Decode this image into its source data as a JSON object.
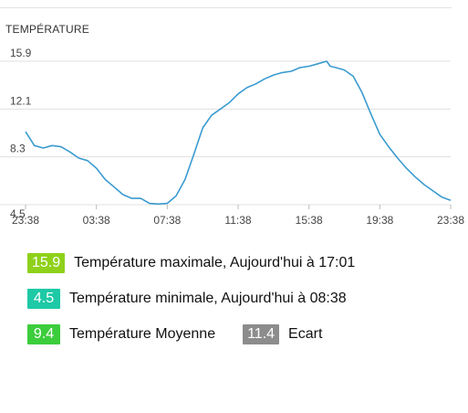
{
  "chart_data": {
    "type": "line",
    "title": "TEMPÉRATURE",
    "xlabel": "",
    "ylabel": "",
    "y_ticks": [
      "15.9",
      "12.1",
      "8.3",
      "4.5"
    ],
    "x_ticks": [
      "23:38",
      "03:38",
      "07:38",
      "11:38",
      "15:38",
      "19:38",
      "23:38"
    ],
    "ylim": [
      4.5,
      15.9
    ],
    "grid": true,
    "series": [
      {
        "color": "#3a9bd0",
        "x": [
          0,
          0.5,
          1,
          1.5,
          2,
          2.5,
          3,
          3.5,
          4,
          4.5,
          5,
          5.5,
          6,
          6.5,
          7,
          7.5,
          8,
          8.5,
          9,
          9.5,
          10,
          10.5,
          11,
          11.5,
          12,
          12.5,
          13,
          13.5,
          14,
          14.5,
          15,
          15.5,
          16,
          16.5,
          17,
          17.2,
          17.5,
          18,
          18.5,
          19,
          19.5,
          20,
          20.5,
          21,
          21.5,
          22,
          22.5,
          23,
          23.5,
          24
        ],
        "values": [
          10.3,
          9.2,
          9.0,
          9.2,
          9.1,
          8.7,
          8.2,
          8.0,
          7.4,
          6.5,
          5.9,
          5.3,
          5.0,
          5.0,
          4.6,
          4.55,
          4.6,
          5.2,
          6.5,
          8.5,
          10.6,
          11.6,
          12.1,
          12.6,
          13.3,
          13.8,
          14.1,
          14.5,
          14.8,
          15.0,
          15.1,
          15.4,
          15.5,
          15.7,
          15.9,
          15.5,
          15.4,
          15.2,
          14.7,
          13.4,
          11.7,
          10.1,
          9.1,
          8.2,
          7.4,
          6.7,
          6.1,
          5.6,
          5.1,
          4.85
        ]
      }
    ]
  },
  "stats": {
    "max": {
      "value": "15.9",
      "label": "Température maximale, Aujourd'hui à 17:01",
      "color": "#8fd11a"
    },
    "min": {
      "value": "4.5",
      "label": "Température minimale, Aujourd'hui à 08:38",
      "color": "#1ec9a6"
    },
    "avg": {
      "value": "9.4",
      "label": "Température Moyenne",
      "color": "#3ccd3c"
    },
    "ecart": {
      "value": "11.4",
      "label": "Ecart",
      "color": "#8c8c8c"
    }
  }
}
